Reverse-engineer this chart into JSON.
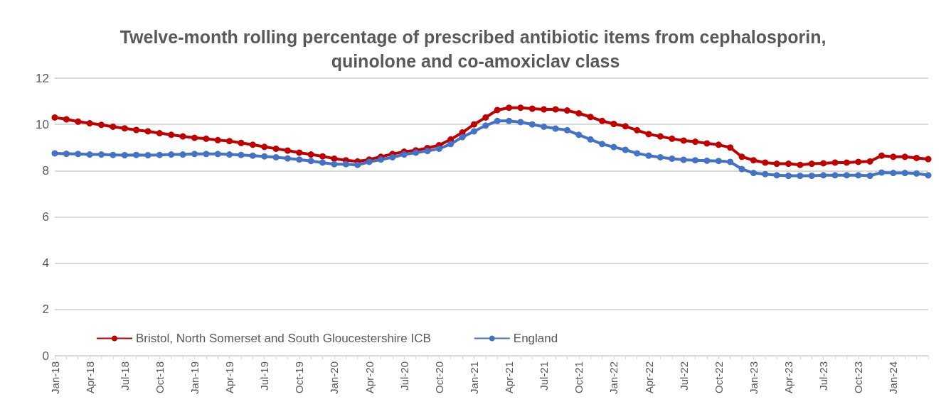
{
  "chart_data": {
    "type": "line",
    "title": "Twelve-month rolling percentage of prescribed antibiotic items from cephalosporin, quinolone and co-amoxiclav class",
    "categories": [
      "Jan-18",
      null,
      null,
      "Apr-18",
      null,
      null,
      "Jul-18",
      null,
      null,
      "Oct-18",
      null,
      null,
      "Jan-19",
      null,
      null,
      "Apr-19",
      null,
      null,
      "Jul-19",
      null,
      null,
      "Oct-19",
      null,
      null,
      "Jan-20",
      null,
      null,
      "Apr-20",
      null,
      null,
      "Jul-20",
      null,
      null,
      "Oct-20",
      null,
      null,
      "Jan-21",
      null,
      null,
      "Apr-21",
      null,
      null,
      "Jul-21",
      null,
      null,
      "Oct-21",
      null,
      null,
      "Jan-22",
      null,
      null,
      "Apr-22",
      null,
      null,
      "Jul-22",
      null,
      null,
      "Oct-22",
      null,
      null,
      "Jan-23",
      null,
      null,
      "Apr-23",
      null,
      null,
      "Jul-23",
      null,
      null,
      "Oct-23",
      null,
      null,
      "Jan-24",
      null,
      null,
      null
    ],
    "series": [
      {
        "name": "Bristol, North Somerset and South Gloucestershire ICB",
        "color": "#c00000",
        "values": [
          10.3,
          10.22,
          10.12,
          10.05,
          9.98,
          9.9,
          9.83,
          9.76,
          9.7,
          9.62,
          9.55,
          9.48,
          9.42,
          9.38,
          9.32,
          9.28,
          9.2,
          9.12,
          9.03,
          8.95,
          8.87,
          8.78,
          8.7,
          8.62,
          8.52,
          8.45,
          8.4,
          8.48,
          8.6,
          8.72,
          8.82,
          8.88,
          8.98,
          9.1,
          9.35,
          9.65,
          10.0,
          10.3,
          10.62,
          10.72,
          10.72,
          10.68,
          10.65,
          10.65,
          10.6,
          10.48,
          10.32,
          10.15,
          10.02,
          9.92,
          9.75,
          9.58,
          9.48,
          9.38,
          9.3,
          9.25,
          9.18,
          9.12,
          9.0,
          8.6,
          8.45,
          8.35,
          8.3,
          8.3,
          8.25,
          8.3,
          8.32,
          8.35,
          8.35,
          8.38,
          8.4,
          8.65,
          8.6,
          8.6,
          8.55,
          8.5
        ]
      },
      {
        "name": "England",
        "color": "#4472c4",
        "values": [
          8.75,
          8.73,
          8.72,
          8.7,
          8.7,
          8.68,
          8.67,
          8.68,
          8.67,
          8.68,
          8.7,
          8.7,
          8.72,
          8.72,
          8.72,
          8.7,
          8.68,
          8.65,
          8.62,
          8.58,
          8.53,
          8.48,
          8.42,
          8.35,
          8.28,
          8.28,
          8.25,
          8.38,
          8.48,
          8.58,
          8.7,
          8.78,
          8.85,
          8.95,
          9.15,
          9.45,
          9.7,
          9.95,
          10.15,
          10.15,
          10.1,
          10.0,
          9.9,
          9.82,
          9.75,
          9.55,
          9.35,
          9.15,
          9.02,
          8.9,
          8.75,
          8.65,
          8.58,
          8.52,
          8.47,
          8.45,
          8.43,
          8.42,
          8.38,
          8.07,
          7.9,
          7.85,
          7.8,
          7.78,
          7.78,
          7.78,
          7.8,
          7.8,
          7.8,
          7.8,
          7.78,
          7.92,
          7.9,
          7.9,
          7.88,
          7.8
        ]
      }
    ],
    "ylim": [
      0,
      12
    ],
    "yticks": [
      0,
      2,
      4,
      6,
      8,
      10,
      12
    ],
    "grid": "y",
    "legend": "bottom left",
    "marker": "circle",
    "line_style": "solid"
  }
}
